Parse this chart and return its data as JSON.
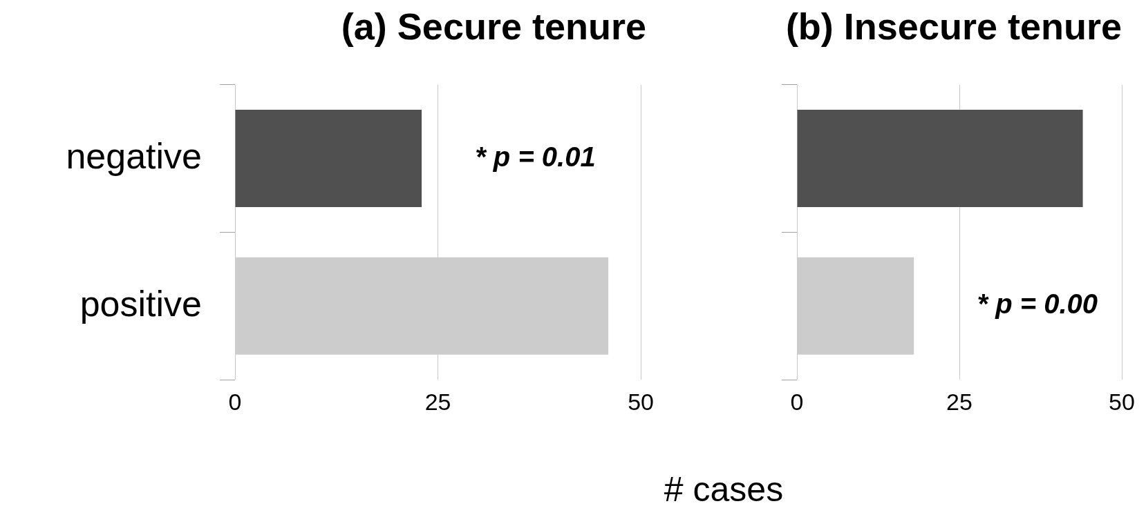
{
  "chart_data": [
    {
      "type": "bar",
      "orientation": "horizontal",
      "title": "(a) Secure tenure",
      "categories": [
        "negative",
        "positive"
      ],
      "values": [
        23,
        46
      ],
      "colors": [
        "#505050",
        "#cccccc"
      ],
      "xlim": [
        0,
        50
      ],
      "xticks": [
        0,
        25,
        50
      ],
      "grid": "x",
      "legend": false,
      "annotations": [
        "* p = 0.01"
      ]
    },
    {
      "type": "bar",
      "orientation": "horizontal",
      "title": "(b) Insecure tenure",
      "categories": [
        null,
        null
      ],
      "values": [
        44,
        18
      ],
      "colors": [
        "#505050",
        "#cccccc"
      ],
      "xlim": [
        0,
        50
      ],
      "xticks": [
        0,
        25,
        50
      ],
      "grid": "x",
      "legend": false,
      "tick_labels": "x",
      "xlabel": "# cases",
      "annotations": [
        "* p = 0.00"
      ]
    }
  ]
}
